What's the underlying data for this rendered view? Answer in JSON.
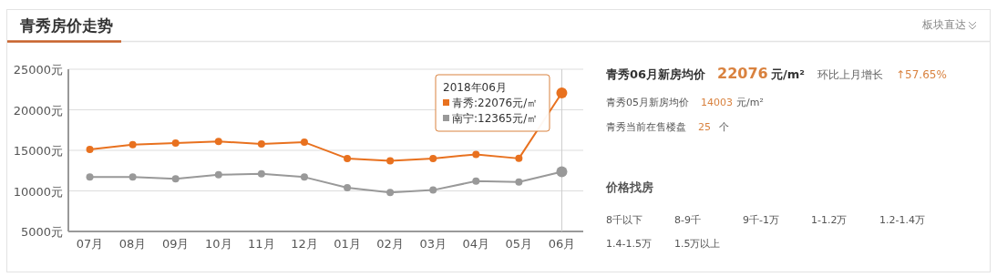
{
  "chart_data": [
    {
      "type": "line",
      "title": "青秀房价走势",
      "categories": [
        "07月",
        "08月",
        "09月",
        "10月",
        "11月",
        "12月",
        "01月",
        "02月",
        "03月",
        "04月",
        "05月",
        "06月"
      ],
      "series": [
        {
          "name": "青秀",
          "color": "#e8711f",
          "values": [
            15100,
            15700,
            15900,
            16100,
            15800,
            16000,
            14000,
            13700,
            14000,
            14500,
            14003,
            22076
          ]
        },
        {
          "name": "南宁",
          "color": "#999999",
          "values": [
            11700,
            11700,
            11500,
            12000,
            12100,
            11700,
            10400,
            9800,
            10100,
            11200,
            11100,
            12365
          ]
        }
      ],
      "ylim": [
        5000,
        25000
      ],
      "yticks": [
        {
          "value": 5000,
          "label": "5000元"
        },
        {
          "value": 10000,
          "label": "10000元"
        },
        {
          "value": 15000,
          "label": "15000元"
        },
        {
          "value": 20000,
          "label": "20000元"
        },
        {
          "value": 25000,
          "label": "25000元"
        }
      ],
      "grid": "y",
      "marker": "circle",
      "legend": "top right",
      "ref_lines": [
        {
          "axis": "x",
          "value": "06月",
          "color": "#cccccc"
        }
      ],
      "annotations": [
        "2018年06月",
        ":22076元/㎡",
        ":12365元/㎡",
        "板块直达"
      ]
    },
    {
      "type": "other",
      "annotations": [
        "青秀06月新房均价",
        "22076",
        "元/m²",
        "环比上月增长",
        "↑57.65%",
        "青秀05月新房均价",
        "14003",
        "元/m²",
        "青秀当前在售楼盘",
        "25",
        "个",
        "价格找房",
        "8千以下",
        "8-9千",
        "9千-1万",
        "1-1.2万",
        "1.2-1.4万",
        "1.4-1.5万",
        "1.5万以上"
      ]
    }
  ]
}
